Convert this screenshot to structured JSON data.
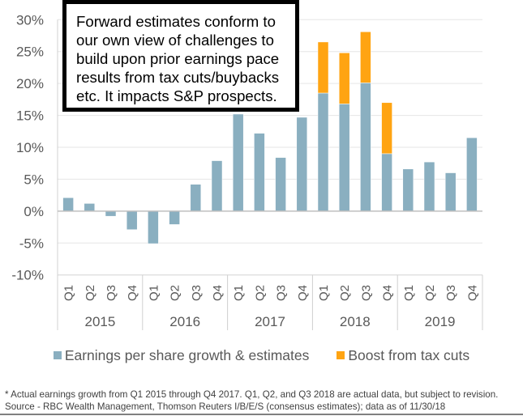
{
  "annotation": {
    "text": "Forward estimates conform to\nour own view of challenges to\nbuild upon prior earnings pace\nresults from tax cuts/buybacks\netc. It impacts S&P prospects."
  },
  "legend": {
    "items": [
      {
        "label": "Earnings per share growth & estimates",
        "color": "#8AAFC0"
      },
      {
        "label": "Boost from tax cuts",
        "color": "#FFA412"
      }
    ]
  },
  "footnote": {
    "line1": "* Actual earnings growth from Q1 2015 through Q4 2017. Q1, Q2, and Q3 2018 are actual data, but subject to revision.",
    "line2": "Source - RBC Wealth Management, Thomson Reuters I/B/E/S (consensus estimates); data as of 11/30/18"
  },
  "chart_data": {
    "type": "bar",
    "stacked": true,
    "title": "",
    "xlabel": "",
    "ylabel": "",
    "ylim": [
      -10,
      30
    ],
    "yticks": [
      -10,
      -5,
      0,
      5,
      10,
      15,
      20,
      25,
      30
    ],
    "ytick_labels": [
      "-10%",
      "-5%",
      "0%",
      "5%",
      "10%",
      "15%",
      "20%",
      "25%",
      "30%"
    ],
    "grid": true,
    "legend_position": "bottom",
    "groups": [
      "2015",
      "2016",
      "2017",
      "2018",
      "2019"
    ],
    "quarters": [
      "Q1",
      "Q2",
      "Q3",
      "Q4"
    ],
    "categories": [
      "2015 Q1",
      "2015 Q2",
      "2015 Q3",
      "2015 Q4",
      "2016 Q1",
      "2016 Q2",
      "2016 Q3",
      "2016 Q4",
      "2017 Q1",
      "2017 Q2",
      "2017 Q3",
      "2017 Q4",
      "2018 Q1",
      "2018 Q2",
      "2018 Q3",
      "2018 Q4",
      "2019 Q1",
      "2019 Q2",
      "2019 Q3",
      "2019 Q4"
    ],
    "series": [
      {
        "name": "Earnings per share growth & estimates",
        "color": "#8AAFC0",
        "values": [
          2.1,
          1.2,
          -0.8,
          -2.9,
          -5.1,
          -2.1,
          4.2,
          7.9,
          15.2,
          12.2,
          8.4,
          14.7,
          18.5,
          16.8,
          20.1,
          9.0,
          6.6,
          7.7,
          6.0,
          11.5
        ]
      },
      {
        "name": "Boost from tax cuts",
        "color": "#FFA412",
        "values": [
          0,
          0,
          0,
          0,
          0,
          0,
          0,
          0,
          0,
          0,
          0,
          0,
          8.0,
          8.0,
          8.0,
          8.0,
          0,
          0,
          0,
          0
        ]
      }
    ]
  }
}
